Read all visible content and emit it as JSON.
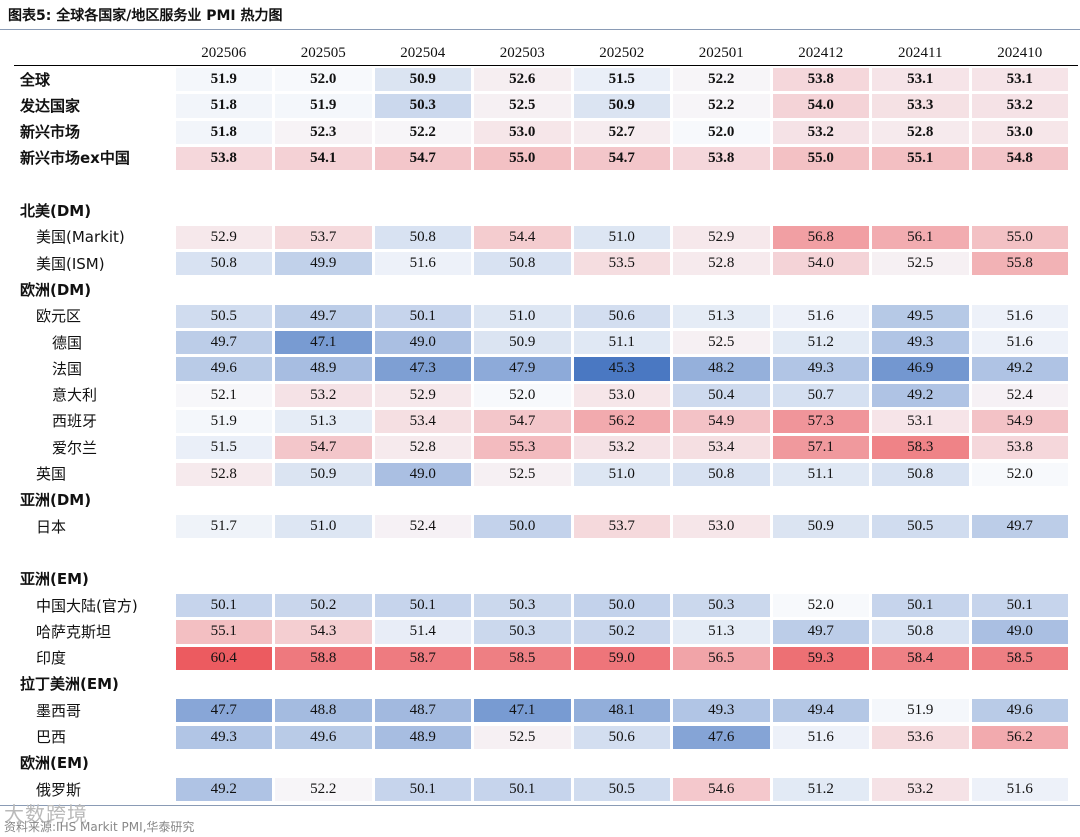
{
  "title": "图表5:  全球各国家/地区服务业 PMI 热力图",
  "source": "资料来源:IHS Markit PMI,华泰研究",
  "watermark": "大数跨境",
  "chart_data": {
    "type": "heatmap",
    "columns": [
      "202506",
      "202505",
      "202504",
      "202503",
      "202502",
      "202501",
      "202412",
      "202411",
      "202410"
    ],
    "color_scale": {
      "low": 45.3,
      "mid": 52.0,
      "high": 60.4,
      "low_color": "#4a78c2",
      "mid_color": "#f7f9fc",
      "high_color": "#ec5b60"
    },
    "rows": [
      {
        "label": "全球",
        "bold": true,
        "indent": 0,
        "values": [
          51.9,
          52.0,
          50.9,
          52.6,
          51.5,
          52.2,
          53.8,
          53.1,
          53.1
        ]
      },
      {
        "label": "发达国家",
        "bold": true,
        "indent": 0,
        "values": [
          51.8,
          51.9,
          50.3,
          52.5,
          50.9,
          52.2,
          54.0,
          53.3,
          53.2
        ]
      },
      {
        "label": "新兴市场",
        "bold": true,
        "indent": 0,
        "values": [
          51.8,
          52.3,
          52.2,
          53.0,
          52.7,
          52.0,
          53.2,
          52.8,
          53.0
        ]
      },
      {
        "label": "新兴市场ex中国",
        "bold": true,
        "indent": 0,
        "values": [
          53.8,
          54.1,
          54.7,
          55.0,
          54.7,
          53.8,
          55.0,
          55.1,
          54.8
        ]
      },
      {
        "label": "",
        "spacer": true
      },
      {
        "label": "北美(DM)",
        "section": true
      },
      {
        "label": "美国(Markit)",
        "indent": 1,
        "values": [
          52.9,
          53.7,
          50.8,
          54.4,
          51.0,
          52.9,
          56.8,
          56.1,
          55.0
        ]
      },
      {
        "label": "美国(ISM)",
        "indent": 1,
        "values": [
          50.8,
          49.9,
          51.6,
          50.8,
          53.5,
          52.8,
          54.0,
          52.5,
          55.8
        ]
      },
      {
        "label": "欧洲(DM)",
        "section": true
      },
      {
        "label": "欧元区",
        "indent": 1,
        "values": [
          50.5,
          49.7,
          50.1,
          51.0,
          50.6,
          51.3,
          51.6,
          49.5,
          51.6
        ]
      },
      {
        "label": "德国",
        "indent": 2,
        "values": [
          49.7,
          47.1,
          49.0,
          50.9,
          51.1,
          52.5,
          51.2,
          49.3,
          51.6
        ]
      },
      {
        "label": "法国",
        "indent": 2,
        "values": [
          49.6,
          48.9,
          47.3,
          47.9,
          45.3,
          48.2,
          49.3,
          46.9,
          49.2
        ]
      },
      {
        "label": "意大利",
        "indent": 2,
        "values": [
          52.1,
          53.2,
          52.9,
          52.0,
          53.0,
          50.4,
          50.7,
          49.2,
          52.4
        ]
      },
      {
        "label": "西班牙",
        "indent": 2,
        "values": [
          51.9,
          51.3,
          53.4,
          54.7,
          56.2,
          54.9,
          57.3,
          53.1,
          54.9
        ]
      },
      {
        "label": "爱尔兰",
        "indent": 2,
        "values": [
          51.5,
          54.7,
          52.8,
          55.3,
          53.2,
          53.4,
          57.1,
          58.3,
          53.8
        ]
      },
      {
        "label": "英国",
        "indent": 1,
        "values": [
          52.8,
          50.9,
          49.0,
          52.5,
          51.0,
          50.8,
          51.1,
          50.8,
          52.0
        ]
      },
      {
        "label": "亚洲(DM)",
        "section": true
      },
      {
        "label": "日本",
        "indent": 1,
        "values": [
          51.7,
          51.0,
          52.4,
          50.0,
          53.7,
          53.0,
          50.9,
          50.5,
          49.7
        ]
      },
      {
        "label": "",
        "spacer": true
      },
      {
        "label": "亚洲(EM)",
        "section": true
      },
      {
        "label": "中国大陆(官方)",
        "indent": 1,
        "values": [
          50.1,
          50.2,
          50.1,
          50.3,
          50.0,
          50.3,
          52.0,
          50.1,
          50.1
        ]
      },
      {
        "label": "哈萨克斯坦",
        "indent": 1,
        "values": [
          55.1,
          54.3,
          51.4,
          50.3,
          50.2,
          51.3,
          49.7,
          50.8,
          49.0
        ]
      },
      {
        "label": "印度",
        "indent": 1,
        "values": [
          60.4,
          58.8,
          58.7,
          58.5,
          59.0,
          56.5,
          59.3,
          58.4,
          58.5
        ]
      },
      {
        "label": "拉丁美洲(EM)",
        "section": true
      },
      {
        "label": "墨西哥",
        "indent": 1,
        "values": [
          47.7,
          48.8,
          48.7,
          47.1,
          48.1,
          49.3,
          49.4,
          51.9,
          49.6
        ]
      },
      {
        "label": "巴西",
        "indent": 1,
        "values": [
          49.3,
          49.6,
          48.9,
          52.5,
          50.6,
          47.6,
          51.6,
          53.6,
          56.2
        ]
      },
      {
        "label": "欧洲(EM)",
        "section": true
      },
      {
        "label": "俄罗斯",
        "indent": 1,
        "values": [
          49.2,
          52.2,
          50.1,
          50.1,
          50.5,
          54.6,
          51.2,
          53.2,
          51.6
        ]
      }
    ]
  }
}
